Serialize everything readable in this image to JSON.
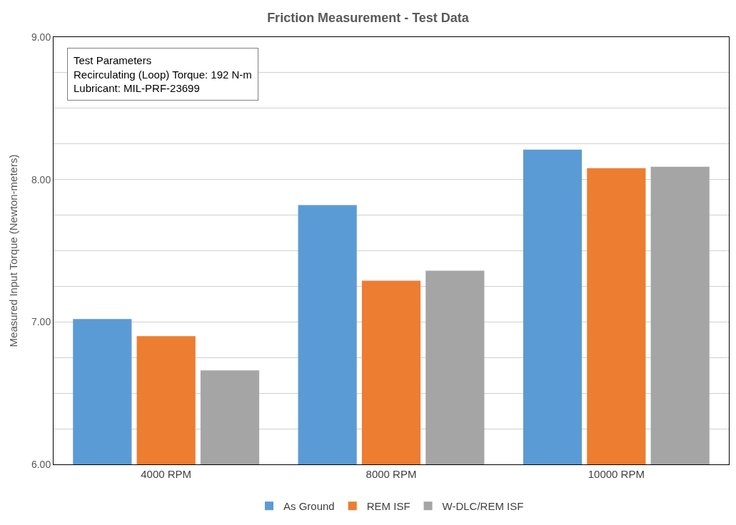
{
  "chart_data": {
    "type": "bar",
    "title": "Friction Measurement - Test Data",
    "ylabel": "Measured Input Torque (Newton-meters)",
    "categories": [
      "4000 RPM",
      "8000 RPM",
      "10000 RPM"
    ],
    "series": [
      {
        "name": "As Ground",
        "color": "#5b9bd5",
        "values": [
          7.02,
          7.82,
          8.21
        ]
      },
      {
        "name": "REM ISF",
        "color": "#ed7d31",
        "values": [
          6.9,
          7.29,
          8.08
        ]
      },
      {
        "name": "W-DLC/REM ISF",
        "color": "#a5a5a5",
        "values": [
          6.66,
          7.36,
          8.09
        ]
      }
    ],
    "ylim": [
      6,
      9
    ],
    "yticks": [
      {
        "value": 6,
        "label": "6.00"
      },
      {
        "value": 6.25,
        "label": null
      },
      {
        "value": 6.5,
        "label": null
      },
      {
        "value": 6.75,
        "label": null
      },
      {
        "value": 7,
        "label": "7.00"
      },
      {
        "value": 7.25,
        "label": null
      },
      {
        "value": 7.5,
        "label": null
      },
      {
        "value": 7.75,
        "label": null
      },
      {
        "value": 8,
        "label": "8.00"
      },
      {
        "value": 8.25,
        "label": null
      },
      {
        "value": 8.5,
        "label": null
      },
      {
        "value": 8.75,
        "label": null
      },
      {
        "value": 9,
        "label": "9.00"
      }
    ],
    "grid": "y",
    "legend": "bottom",
    "annotations": [
      "Test Parameters\nRecirculating (Loop) Torque: 192 N-m\nLubricant: MIL-PRF-23699"
    ]
  }
}
